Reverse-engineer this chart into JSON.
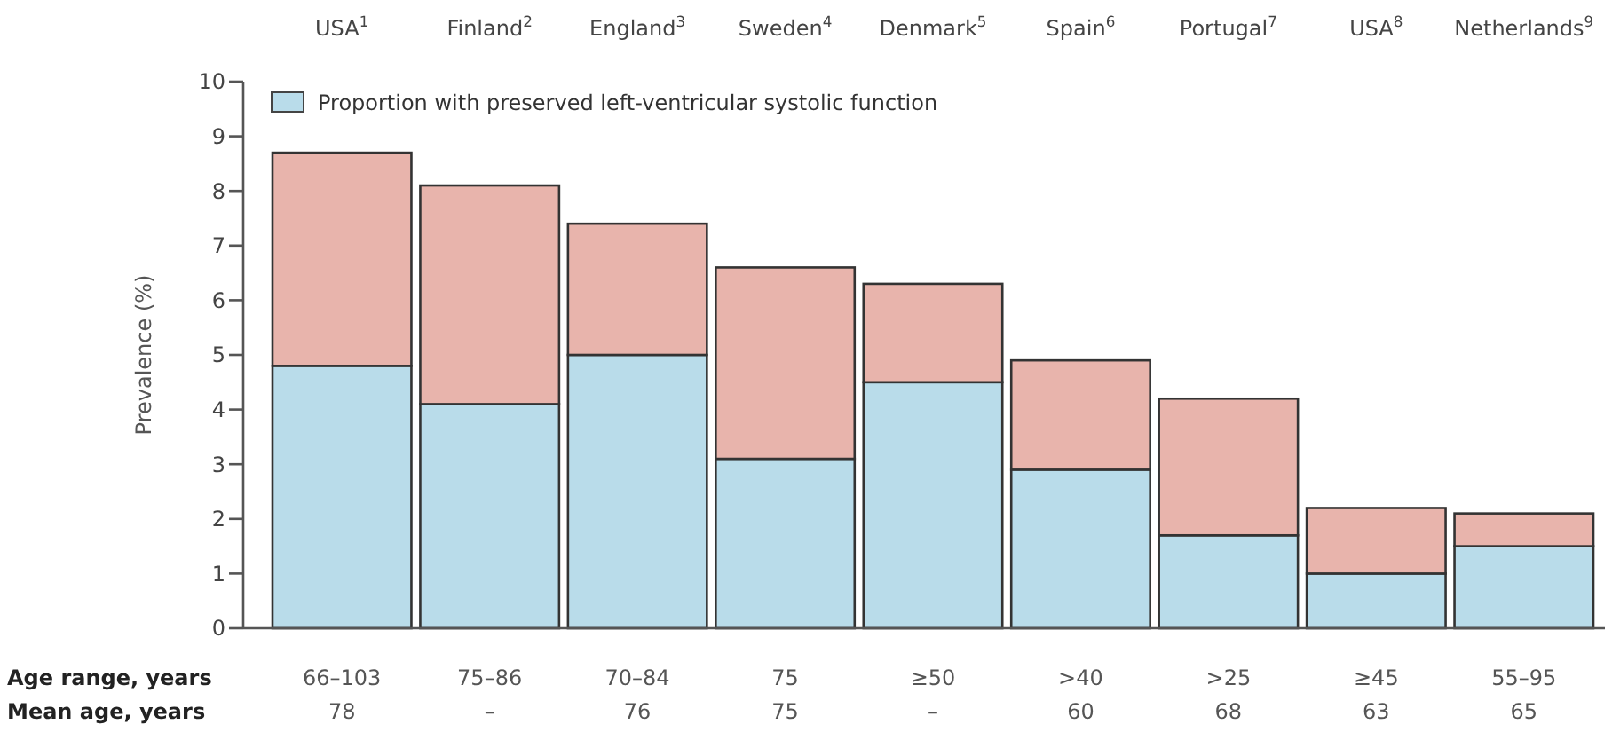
{
  "chart_data": {
    "type": "bar",
    "stacked": true,
    "ylabel": "Prevalence (%)",
    "categories": [
      "USA$^{1}$",
      "Finland$^{2}$",
      "England$^{3}$",
      "Sweden$^{4}$",
      "Denmark$^{5}$",
      "Spain$^{6}$",
      "Portugal$^{7}$",
      "USA$^{8}$",
      "Netherlands$^{9}$"
    ],
    "series": [
      {
        "name": "Proportion with preserved left-ventricular systolic function",
        "color": "#b9dcea",
        "values": [
          4.8,
          4.1,
          5.0,
          3.1,
          4.5,
          2.9,
          1.7,
          1.0,
          1.5
        ]
      },
      {
        "color": "#e8b4ac",
        "values": [
          3.9,
          4.0,
          2.4,
          3.5,
          1.8,
          2.0,
          2.5,
          1.2,
          0.6
        ]
      }
    ],
    "ylim": [
      0,
      10
    ],
    "yticks": [
      0,
      1,
      2,
      3,
      4,
      5,
      6,
      7,
      8,
      9,
      10
    ],
    "legend": "top left",
    "annotations": [
      "Age range, years",
      "66–103",
      "75–86",
      "70–84",
      "75",
      "≥50",
      ">40",
      ">25",
      "≥45",
      "55–95",
      "Mean age, years",
      "78",
      "–",
      "76",
      "75",
      "–",
      "60",
      "68",
      "63",
      "65"
    ]
  }
}
